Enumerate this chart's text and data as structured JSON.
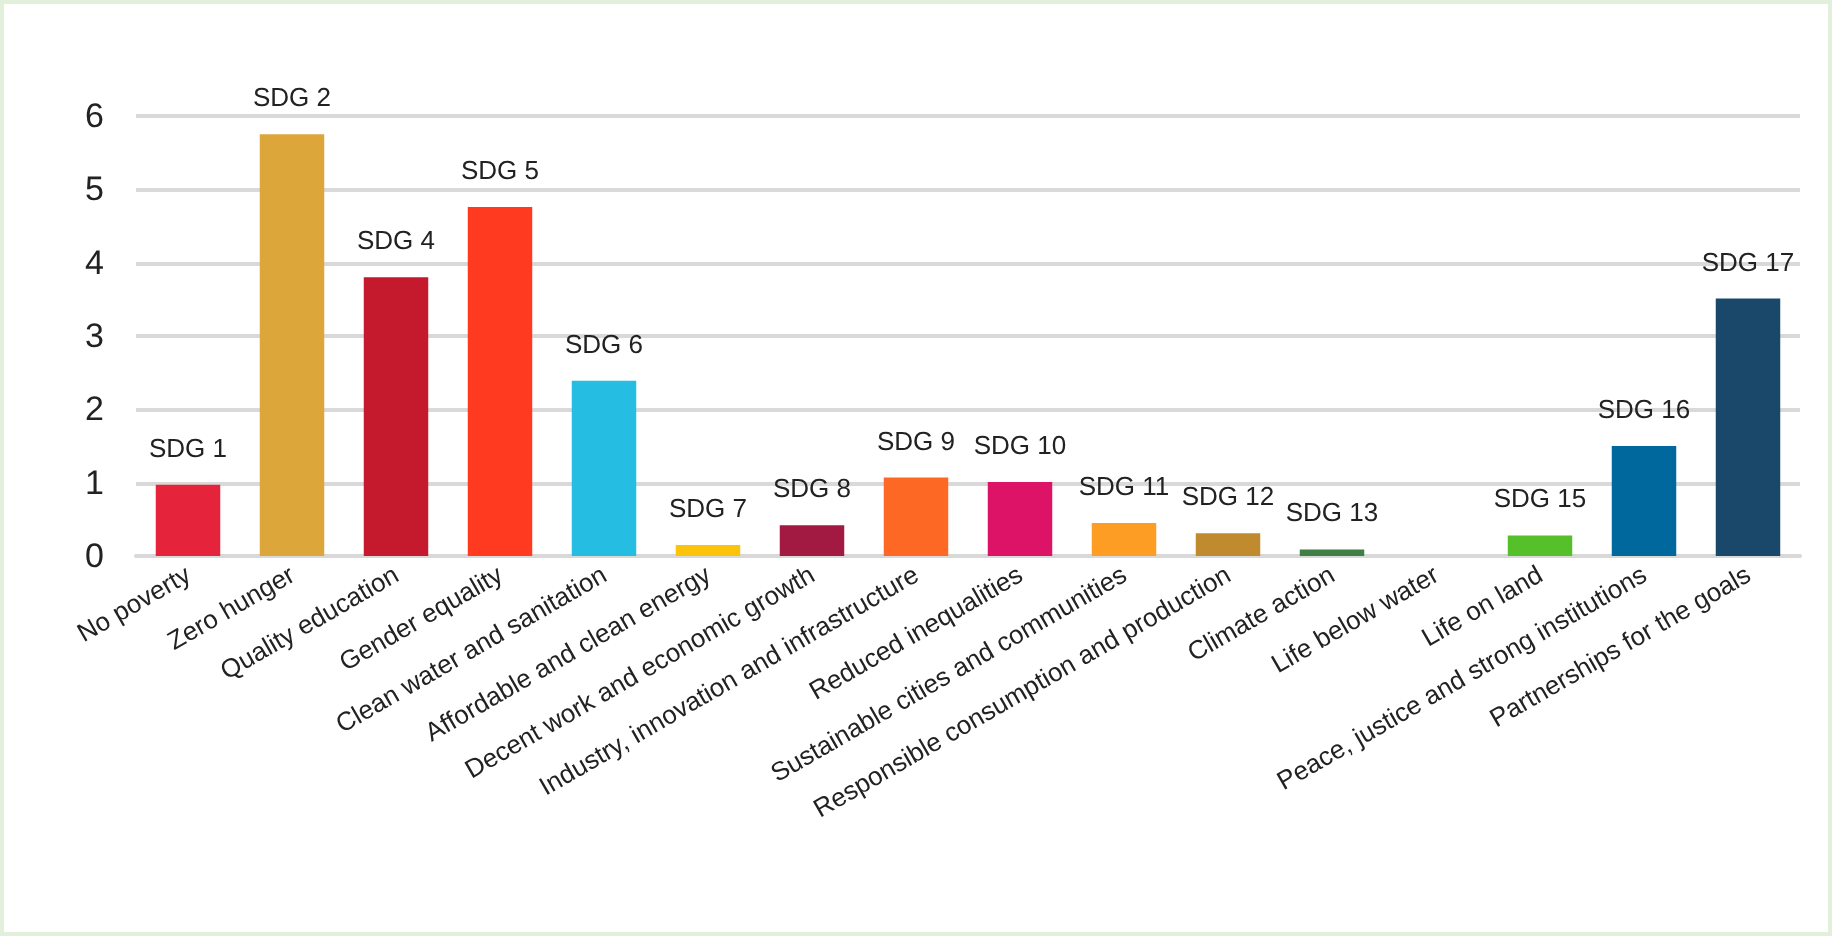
{
  "chart_data": {
    "type": "bar",
    "categories": [
      "No poverty",
      "Zero hunger",
      "Quality education",
      "Gender equality",
      "Clean water and sanitation",
      "Affordable and clean energy",
      "Decent work and economic growth",
      "Industry, innovation and infrastructure",
      "Reduced inequalities",
      "Sustainable cities and communities",
      "Responsible consumption and production",
      "Climate action",
      "Life below water",
      "Life on land",
      "Peace, justice and strong institutions",
      "Partnerships for the goals"
    ],
    "values": [
      0.97,
      5.75,
      3.8,
      4.76,
      2.39,
      0.15,
      0.42,
      1.07,
      1.01,
      0.45,
      0.31,
      0.09,
      0,
      0.28,
      1.5,
      3.51
    ],
    "colors": [
      "#e5243b",
      "#dda63a",
      "#c5192d",
      "#ff3a21",
      "#26bde2",
      "#fcc30b",
      "#a21942",
      "#fd6925",
      "#dd1367",
      "#fd9d24",
      "#bf8b2e",
      "#3f7e44",
      "#0a97d9",
      "#56c02b",
      "#00689d",
      "#19486a"
    ],
    "value_labels": [
      "SDG 1",
      "SDG 2",
      "SDG 4",
      "SDG 5",
      "SDG 6",
      "SDG 7",
      "SDG 8",
      "SDG 9",
      "SDG 10",
      "SDG 11",
      "SDG 12",
      "SDG 13",
      null,
      "SDG 15",
      "SDG 16",
      "SDG 17"
    ],
    "ylim": [
      0,
      6
    ],
    "yticks": [
      0,
      1,
      2,
      3,
      4,
      5,
      6
    ],
    "grid": "y"
  }
}
